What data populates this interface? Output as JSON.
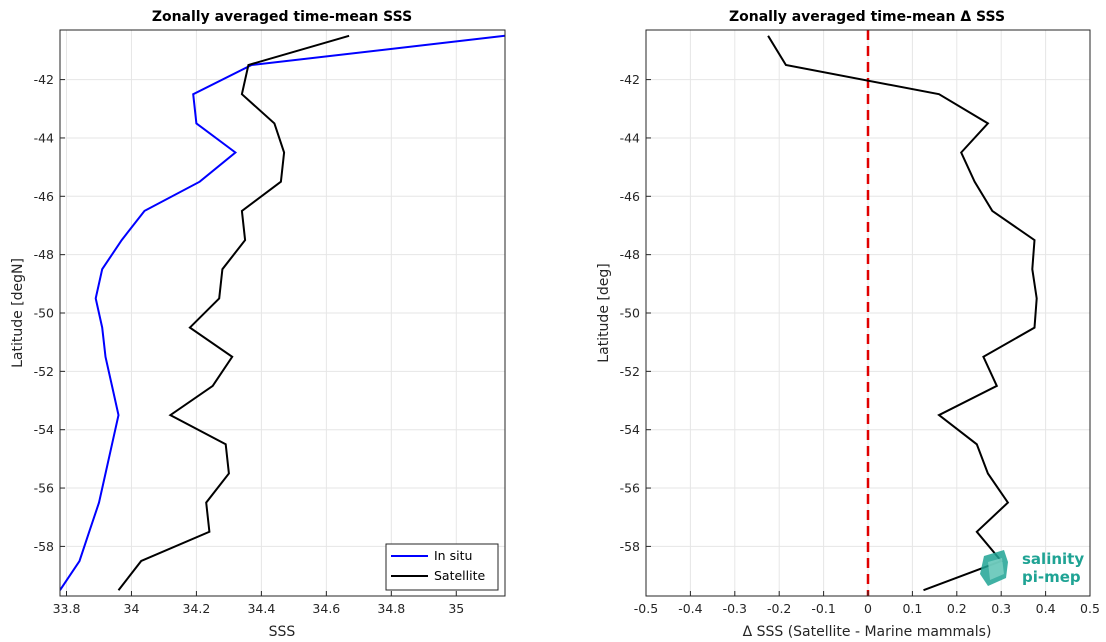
{
  "chart_data": [
    {
      "type": "line",
      "title": "Zonally averaged time-mean SSS",
      "xlabel": "SSS",
      "ylabel": "Latitude [degN]",
      "xlim": [
        33.78,
        35.15
      ],
      "ylim": [
        -59.7,
        -40.3
      ],
      "xticks": [
        "33.8",
        "34",
        "34.2",
        "34.4",
        "34.6",
        "34.8",
        "35"
      ],
      "xtick_values": [
        33.8,
        34.0,
        34.2,
        34.4,
        34.6,
        34.8,
        35.0
      ],
      "yticks": [
        "-42",
        "-44",
        "-46",
        "-48",
        "-50",
        "-52",
        "-54",
        "-56",
        "-58"
      ],
      "ytick_values": [
        -42,
        -44,
        -46,
        -48,
        -50,
        -52,
        -54,
        -56,
        -58
      ],
      "grid": true,
      "legend_position": "bottom-right",
      "series": [
        {
          "name": "In situ",
          "color": "#0000ff",
          "points": [
            [
              35.15,
              -40.5
            ],
            [
              34.37,
              -41.5
            ],
            [
              34.19,
              -42.5
            ],
            [
              34.2,
              -43.5
            ],
            [
              34.32,
              -44.5
            ],
            [
              34.21,
              -45.5
            ],
            [
              34.04,
              -46.5
            ],
            [
              33.97,
              -47.5
            ],
            [
              33.91,
              -48.5
            ],
            [
              33.89,
              -49.5
            ],
            [
              33.91,
              -50.5
            ],
            [
              33.92,
              -51.5
            ],
            [
              33.94,
              -52.5
            ],
            [
              33.96,
              -53.5
            ],
            [
              33.94,
              -54.5
            ],
            [
              33.92,
              -55.5
            ],
            [
              33.9,
              -56.5
            ],
            [
              33.87,
              -57.5
            ],
            [
              33.84,
              -58.5
            ],
            [
              33.78,
              -59.5
            ]
          ]
        },
        {
          "name": "Satellite",
          "color": "#000000",
          "points": [
            [
              34.67,
              -40.5
            ],
            [
              34.36,
              -41.5
            ],
            [
              34.34,
              -42.5
            ],
            [
              34.44,
              -43.5
            ],
            [
              34.47,
              -44.5
            ],
            [
              34.46,
              -45.5
            ],
            [
              34.34,
              -46.5
            ],
            [
              34.35,
              -47.5
            ],
            [
              34.28,
              -48.5
            ],
            [
              34.27,
              -49.5
            ],
            [
              34.18,
              -50.5
            ],
            [
              34.31,
              -51.5
            ],
            [
              34.25,
              -52.5
            ],
            [
              34.12,
              -53.5
            ],
            [
              34.29,
              -54.5
            ],
            [
              34.3,
              -55.5
            ],
            [
              34.23,
              -56.5
            ],
            [
              34.24,
              -57.5
            ],
            [
              34.03,
              -58.5
            ],
            [
              33.96,
              -59.5
            ]
          ]
        }
      ]
    },
    {
      "type": "line",
      "title": "Zonally averaged time-mean Δ SSS",
      "xlabel": "Δ SSS (Satellite - Marine mammals)",
      "ylabel": "Latitude [deg]",
      "xlim": [
        -0.5,
        0.5
      ],
      "ylim": [
        -59.7,
        -40.3
      ],
      "xticks": [
        "-0.5",
        "-0.4",
        "-0.3",
        "-0.2",
        "-0.1",
        "0",
        "0.1",
        "0.2",
        "0.3",
        "0.4",
        "0.5"
      ],
      "xtick_values": [
        -0.5,
        -0.4,
        -0.3,
        -0.2,
        -0.1,
        0,
        0.1,
        0.2,
        0.3,
        0.4,
        0.5
      ],
      "yticks": [
        "-42",
        "-44",
        "-46",
        "-48",
        "-50",
        "-52",
        "-54",
        "-56",
        "-58"
      ],
      "ytick_values": [
        -42,
        -44,
        -46,
        -48,
        -50,
        -52,
        -54,
        -56,
        -58
      ],
      "grid": true,
      "reference_line": {
        "x": 0,
        "color": "#e00000",
        "style": "dashed"
      },
      "series": [
        {
          "color": "#000000",
          "points": [
            [
              -0.225,
              -40.5
            ],
            [
              -0.185,
              -41.5
            ],
            [
              0.16,
              -42.5
            ],
            [
              0.27,
              -43.5
            ],
            [
              0.21,
              -44.5
            ],
            [
              0.24,
              -45.5
            ],
            [
              0.28,
              -46.5
            ],
            [
              0.375,
              -47.5
            ],
            [
              0.37,
              -48.5
            ],
            [
              0.38,
              -49.5
            ],
            [
              0.375,
              -50.5
            ],
            [
              0.26,
              -51.5
            ],
            [
              0.29,
              -52.5
            ],
            [
              0.16,
              -53.5
            ],
            [
              0.245,
              -54.5
            ],
            [
              0.27,
              -55.5
            ],
            [
              0.315,
              -56.5
            ],
            [
              0.245,
              -57.5
            ],
            [
              0.3,
              -58.5
            ],
            [
              0.125,
              -59.5
            ]
          ]
        }
      ]
    }
  ],
  "logo": {
    "line1": "salinity",
    "line2": "pi-mep",
    "color": "#1fa394"
  }
}
